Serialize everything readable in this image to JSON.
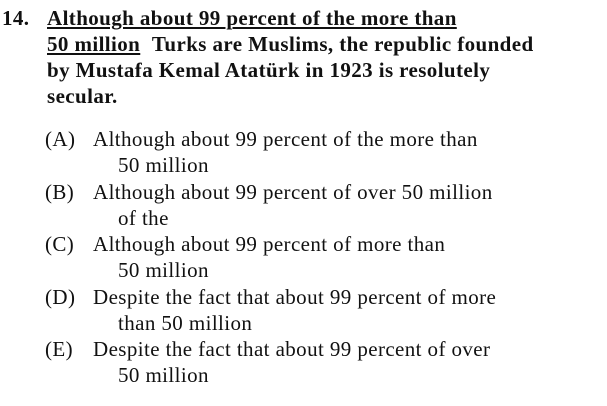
{
  "question": {
    "number": "14.",
    "stem": {
      "underlined": [
        "Although about 99 percent of the more than",
        "50 million"
      ],
      "rest": [
        "Turks are Muslims, the republic founded",
        "by Mustafa Kemal Atatürk in 1923 is resolutely",
        "secular."
      ]
    },
    "choices": [
      {
        "letter": "(A)",
        "lines": [
          "Although about 99 percent of the more than",
          "50 million"
        ]
      },
      {
        "letter": "(B)",
        "lines": [
          "Although about 99 percent of over 50 million",
          "of the"
        ]
      },
      {
        "letter": "(C)",
        "lines": [
          "Although about 99 percent of more than",
          "50 million"
        ]
      },
      {
        "letter": "(D)",
        "lines": [
          "Despite the fact that about 99 percent of more",
          "than 50 million"
        ]
      },
      {
        "letter": "(E)",
        "lines": [
          "Despite the fact that about 99 percent of over",
          "50 million"
        ]
      }
    ]
  }
}
